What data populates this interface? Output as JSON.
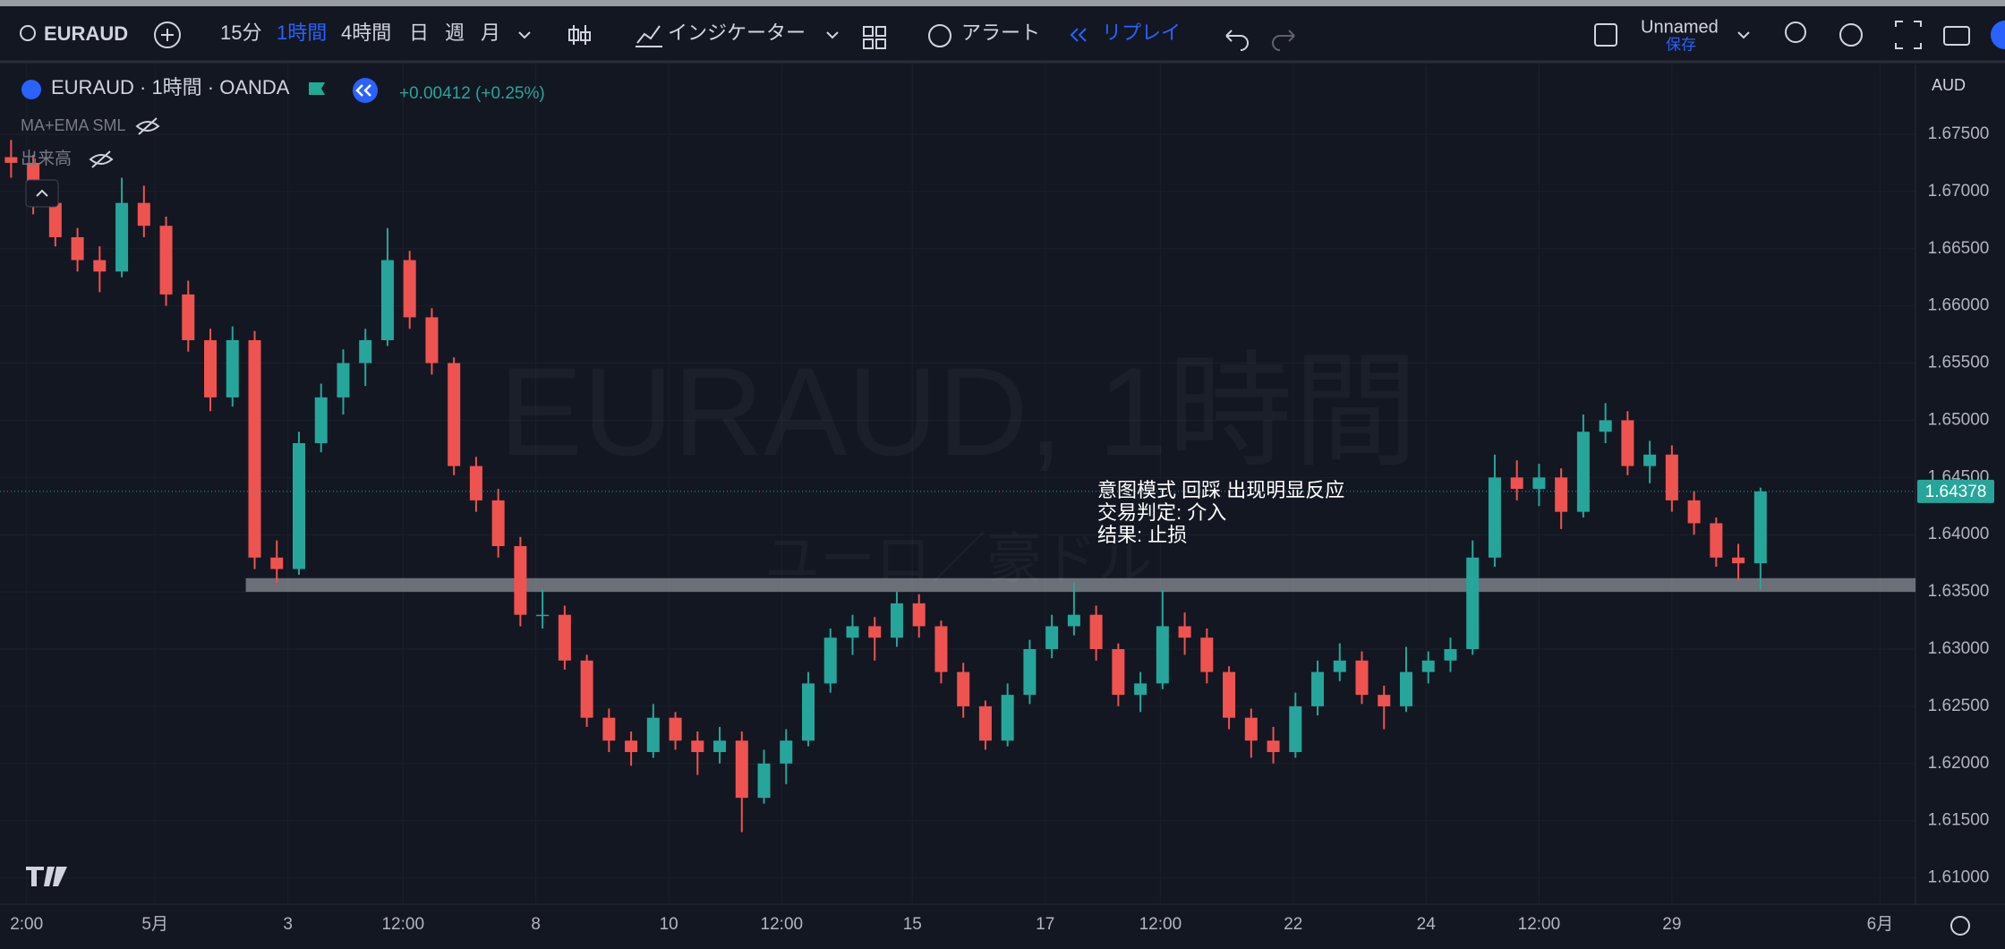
{
  "toolbar": {
    "symbol": "EURAUD",
    "intervals": [
      "15分",
      "1時間",
      "4時間",
      "日",
      "週",
      "月"
    ],
    "indicators": "インジケーター",
    "alert": "アラート",
    "replay": "リプレイ",
    "layout_name": "Unnamed",
    "save": "保存"
  },
  "legend": {
    "title": "EURAUD · 1時間 · OANDA",
    "change": "+0.00412 (+0.25%)",
    "indicators": [
      "MA+EMA SML",
      "出来高"
    ]
  },
  "chart_data": {
    "type": "candlestick",
    "watermark": "EURAUD, 1時間",
    "watermark_subtitle": "ユーロ／豪ドル",
    "currency": "AUD",
    "up_color": "#26a69a",
    "down_color": "#ef5350",
    "grid": true,
    "candles": [
      [
        1.673,
        1.6745,
        1.6712,
        1.6725
      ],
      [
        1.6725,
        1.6732,
        1.668,
        1.669
      ],
      [
        1.669,
        1.6698,
        1.6652,
        1.666
      ],
      [
        1.666,
        1.6668,
        1.663,
        1.664
      ],
      [
        1.664,
        1.6652,
        1.6612,
        1.663
      ],
      [
        1.663,
        1.6712,
        1.6625,
        1.669
      ],
      [
        1.669,
        1.6705,
        1.666,
        1.667
      ],
      [
        1.667,
        1.6678,
        1.66,
        1.661
      ],
      [
        1.661,
        1.6622,
        1.656,
        1.657
      ],
      [
        1.657,
        1.658,
        1.6508,
        1.652
      ],
      [
        1.652,
        1.6582,
        1.6512,
        1.657
      ],
      [
        1.657,
        1.6578,
        1.637,
        1.638
      ],
      [
        1.638,
        1.6395,
        1.6358,
        1.637
      ],
      [
        1.637,
        1.649,
        1.6365,
        1.648
      ],
      [
        1.648,
        1.6532,
        1.6472,
        1.652
      ],
      [
        1.652,
        1.6562,
        1.6505,
        1.655
      ],
      [
        1.655,
        1.658,
        1.653,
        1.657
      ],
      [
        1.657,
        1.6668,
        1.6565,
        1.664
      ],
      [
        1.664,
        1.6648,
        1.658,
        1.659
      ],
      [
        1.659,
        1.6598,
        1.654,
        1.655
      ],
      [
        1.655,
        1.6555,
        1.6452,
        1.646
      ],
      [
        1.646,
        1.6468,
        1.642,
        1.643
      ],
      [
        1.643,
        1.644,
        1.638,
        1.639
      ],
      [
        1.639,
        1.6398,
        1.632,
        1.633
      ],
      [
        1.633,
        1.6352,
        1.6318,
        1.633
      ],
      [
        1.633,
        1.6338,
        1.6282,
        1.629
      ],
      [
        1.629,
        1.6295,
        1.6232,
        1.624
      ],
      [
        1.624,
        1.6248,
        1.621,
        1.622
      ],
      [
        1.622,
        1.6228,
        1.6198,
        1.621
      ],
      [
        1.621,
        1.6252,
        1.6205,
        1.624
      ],
      [
        1.624,
        1.6245,
        1.6212,
        1.622
      ],
      [
        1.622,
        1.6228,
        1.619,
        1.621
      ],
      [
        1.621,
        1.6232,
        1.62,
        1.622
      ],
      [
        1.622,
        1.6228,
        1.614,
        1.617
      ],
      [
        1.617,
        1.6212,
        1.6165,
        1.62
      ],
      [
        1.62,
        1.623,
        1.6182,
        1.622
      ],
      [
        1.622,
        1.628,
        1.6215,
        1.627
      ],
      [
        1.627,
        1.6318,
        1.6262,
        1.631
      ],
      [
        1.631,
        1.633,
        1.6295,
        1.632
      ],
      [
        1.632,
        1.6328,
        1.629,
        1.631
      ],
      [
        1.631,
        1.635,
        1.6302,
        1.634
      ],
      [
        1.634,
        1.6348,
        1.631,
        1.632
      ],
      [
        1.632,
        1.6325,
        1.627,
        1.628
      ],
      [
        1.628,
        1.6288,
        1.624,
        1.625
      ],
      [
        1.625,
        1.6255,
        1.6212,
        1.622
      ],
      [
        1.622,
        1.627,
        1.6215,
        1.626
      ],
      [
        1.626,
        1.6308,
        1.6252,
        1.63
      ],
      [
        1.63,
        1.633,
        1.6292,
        1.632
      ],
      [
        1.632,
        1.6358,
        1.6312,
        1.633
      ],
      [
        1.633,
        1.6338,
        1.629,
        1.63
      ],
      [
        1.63,
        1.6305,
        1.625,
        1.626
      ],
      [
        1.626,
        1.628,
        1.6245,
        1.627
      ],
      [
        1.627,
        1.6352,
        1.6265,
        1.632
      ],
      [
        1.632,
        1.6332,
        1.6295,
        1.631
      ],
      [
        1.631,
        1.6318,
        1.627,
        1.628
      ],
      [
        1.628,
        1.6285,
        1.623,
        1.624
      ],
      [
        1.624,
        1.6248,
        1.6205,
        1.622
      ],
      [
        1.622,
        1.6232,
        1.62,
        1.621
      ],
      [
        1.621,
        1.6262,
        1.6205,
        1.625
      ],
      [
        1.625,
        1.629,
        1.6242,
        1.628
      ],
      [
        1.628,
        1.6305,
        1.6272,
        1.629
      ],
      [
        1.629,
        1.6298,
        1.6252,
        1.626
      ],
      [
        1.626,
        1.6268,
        1.623,
        1.625
      ],
      [
        1.625,
        1.6302,
        1.6245,
        1.628
      ],
      [
        1.628,
        1.6298,
        1.627,
        1.629
      ],
      [
        1.629,
        1.631,
        1.628,
        1.63
      ],
      [
        1.63,
        1.6395,
        1.6295,
        1.638
      ],
      [
        1.638,
        1.647,
        1.6372,
        1.645
      ],
      [
        1.645,
        1.6465,
        1.643,
        1.644
      ],
      [
        1.644,
        1.6462,
        1.6425,
        1.645
      ],
      [
        1.645,
        1.6458,
        1.6405,
        1.642
      ],
      [
        1.642,
        1.6505,
        1.6415,
        1.649
      ],
      [
        1.649,
        1.6515,
        1.648,
        1.65
      ],
      [
        1.65,
        1.6508,
        1.6452,
        1.646
      ],
      [
        1.646,
        1.6482,
        1.6445,
        1.647
      ],
      [
        1.647,
        1.6478,
        1.642,
        1.643
      ],
      [
        1.643,
        1.6438,
        1.64,
        1.641
      ],
      [
        1.641,
        1.6415,
        1.6372,
        1.638
      ],
      [
        1.638,
        1.6392,
        1.636,
        1.6375
      ],
      [
        1.6375,
        1.64412,
        1.6352,
        1.64378
      ]
    ],
    "ylim": [
      1.6077,
      1.6811
    ],
    "yticks": [
      {
        "value": 1.675,
        "label": "1.67500"
      },
      {
        "value": 1.67,
        "label": "1.67000"
      },
      {
        "value": 1.665,
        "label": "1.66500"
      },
      {
        "value": 1.66,
        "label": "1.66000"
      },
      {
        "value": 1.655,
        "label": "1.65500"
      },
      {
        "value": 1.65,
        "label": "1.65000"
      },
      {
        "value": 1.645,
        "label": "1.64500"
      },
      {
        "value": 1.64,
        "label": "1.64000"
      },
      {
        "value": 1.635,
        "label": "1.63500"
      },
      {
        "value": 1.63,
        "label": "1.63000"
      },
      {
        "value": 1.625,
        "label": "1.62500"
      },
      {
        "value": 1.62,
        "label": "1.62000"
      },
      {
        "value": 1.615,
        "label": "1.61500"
      },
      {
        "value": 1.61,
        "label": "1.61000"
      }
    ],
    "xlim": [
      -0.5,
      86
    ],
    "xticks": [
      {
        "value": 0.7,
        "label": "2:00"
      },
      {
        "value": 6.5,
        "label": "5月"
      },
      {
        "value": 12.5,
        "label": "3"
      },
      {
        "value": 17.7,
        "label": "12:00"
      },
      {
        "value": 23.7,
        "label": "8"
      },
      {
        "value": 29.7,
        "label": "10"
      },
      {
        "value": 34.8,
        "label": "12:00"
      },
      {
        "value": 40.7,
        "label": "15"
      },
      {
        "value": 46.7,
        "label": "17"
      },
      {
        "value": 51.9,
        "label": "12:00"
      },
      {
        "value": 57.9,
        "label": "22"
      },
      {
        "value": 63.9,
        "label": "24"
      },
      {
        "value": 69,
        "label": "12:00"
      },
      {
        "value": 75,
        "label": "29"
      },
      {
        "value": 84.4,
        "label": "6月"
      }
    ],
    "zone": {
      "x_from": 10.6,
      "low": 1.635,
      "high": 1.6362,
      "color": "#8a8d96"
    },
    "last_price": 1.64378,
    "annotation": [
      "意图模式 回踩 出现明显反应",
      "交易判定: 介入",
      "结果: 止损"
    ]
  }
}
